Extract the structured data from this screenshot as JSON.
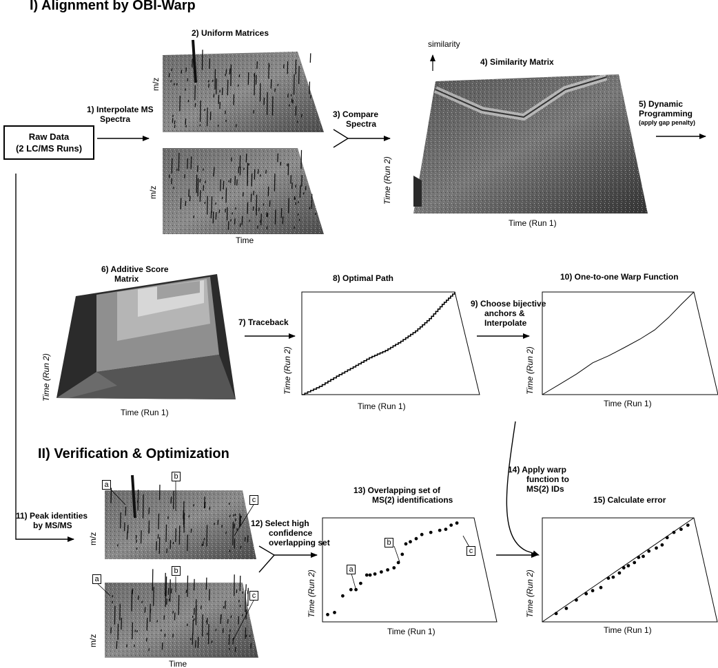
{
  "section1_title": "I) Alignment by OBI-Warp",
  "section2_title": "II) Verification & Optimization",
  "raw_data": {
    "line1": "Raw Data",
    "line2": "(2 LC/MS Runs)"
  },
  "steps": {
    "s1": {
      "line1": "1)  Interpolate MS",
      "line2": "Spectra"
    },
    "s2": "2)  Uniform Matrices",
    "s3": {
      "line1": "3)  Compare",
      "line2": "Spectra"
    },
    "s4": "4)  Similarity Matrix",
    "s5": {
      "line1": "5)  Dynamic",
      "line2": "Programming",
      "line3": "(apply gap penalty)"
    },
    "s6": {
      "line1": "6)  Additive Score",
      "line2": "Matrix"
    },
    "s7": "7)  Traceback",
    "s8": "8)  Optimal Path",
    "s9": {
      "line1": "9)  Choose bijective",
      "line2": "anchors &",
      "line3": "Interpolate"
    },
    "s10": "10)  One-to-one Warp Function",
    "s11": {
      "line1": "11)  Peak identities",
      "line2": "by MS/MS"
    },
    "s12": {
      "line1": "12)  Select high",
      "line2": "confidence",
      "line3": "overlapping set"
    },
    "s13": {
      "line1": "13)  Overlapping set of",
      "line2": "MS(2) identifications"
    },
    "s14": {
      "line1": "14)  Apply warp",
      "line2": "function to",
      "line3": "MS(2) IDs"
    },
    "s15": "15)  Calculate error"
  },
  "axes": {
    "mz": "m/z",
    "time": "Time",
    "time_run1": "Time (Run 1)",
    "time_run2": "Time (Run 2)",
    "similarity": "similarity"
  },
  "markers": {
    "a": "a",
    "b": "b",
    "c": "c"
  },
  "colors": {
    "ink": "#000000",
    "surface_dark": "#3a3a3a",
    "surface_light": "#cfcfcf",
    "background": "#ffffff"
  },
  "chart_data": [
    {
      "type": "line",
      "id": "optimal-path",
      "title": "8)  Optimal Path",
      "xlabel": "Time (Run 1)",
      "ylabel": "Time (Run 2)",
      "xlim": [
        0,
        1
      ],
      "ylim": [
        0,
        1
      ],
      "series": [
        {
          "x": [
            0,
            0.1,
            0.2,
            0.3,
            0.4,
            0.5,
            0.6,
            0.7,
            0.8,
            0.9,
            1.0
          ],
          "y": [
            0,
            0.08,
            0.18,
            0.27,
            0.36,
            0.43,
            0.52,
            0.62,
            0.74,
            0.88,
            1.0
          ]
        }
      ]
    },
    {
      "type": "line",
      "id": "warp-function",
      "title": "10)  One-to-one Warp Function",
      "xlabel": "Time (Run 1)",
      "ylabel": "Time (Run 2)",
      "xlim": [
        0,
        1
      ],
      "ylim": [
        0,
        1
      ],
      "series": [
        {
          "x": [
            0,
            0.1,
            0.2,
            0.3,
            0.4,
            0.5,
            0.6,
            0.7,
            0.8,
            0.9,
            1.0
          ],
          "y": [
            0,
            0.1,
            0.2,
            0.31,
            0.38,
            0.46,
            0.54,
            0.63,
            0.75,
            0.88,
            1.0
          ]
        }
      ]
    },
    {
      "type": "scatter",
      "id": "overlapping-ids",
      "title": "13)  Overlapping set of MS(2) identifications",
      "xlabel": "Time (Run 1)",
      "ylabel": "Time (Run 2)",
      "xlim": [
        0,
        1
      ],
      "ylim": [
        0,
        1
      ],
      "series": [
        {
          "x": [
            0.03,
            0.07,
            0.12,
            0.17,
            0.2,
            0.23,
            0.27,
            0.29,
            0.32,
            0.36,
            0.4,
            0.44,
            0.47,
            0.5,
            0.53,
            0.56,
            0.6,
            0.64,
            0.7,
            0.76,
            0.8,
            0.84,
            0.88
          ],
          "y": [
            0.07,
            0.09,
            0.25,
            0.31,
            0.31,
            0.37,
            0.45,
            0.45,
            0.46,
            0.48,
            0.5,
            0.52,
            0.57,
            0.65,
            0.75,
            0.77,
            0.8,
            0.84,
            0.86,
            0.88,
            0.89,
            0.93,
            0.95
          ]
        }
      ]
    },
    {
      "type": "scatter",
      "id": "calculate-error",
      "title": "15)  Calculate error",
      "xlabel": "Time (Run 1)",
      "ylabel": "Time (Run 2)",
      "xlim": [
        0,
        1
      ],
      "ylim": [
        0,
        1
      ],
      "series": [
        {
          "x": [
            0.08,
            0.14,
            0.2,
            0.26,
            0.3,
            0.35,
            0.4,
            0.43,
            0.47,
            0.5,
            0.53,
            0.57,
            0.6,
            0.63,
            0.67,
            0.72,
            0.76,
            0.8,
            0.85,
            0.9,
            0.95
          ],
          "y": [
            0.08,
            0.13,
            0.21,
            0.27,
            0.3,
            0.33,
            0.42,
            0.43,
            0.47,
            0.52,
            0.54,
            0.57,
            0.62,
            0.63,
            0.68,
            0.71,
            0.74,
            0.81,
            0.86,
            0.89,
            0.93
          ]
        }
      ]
    }
  ]
}
